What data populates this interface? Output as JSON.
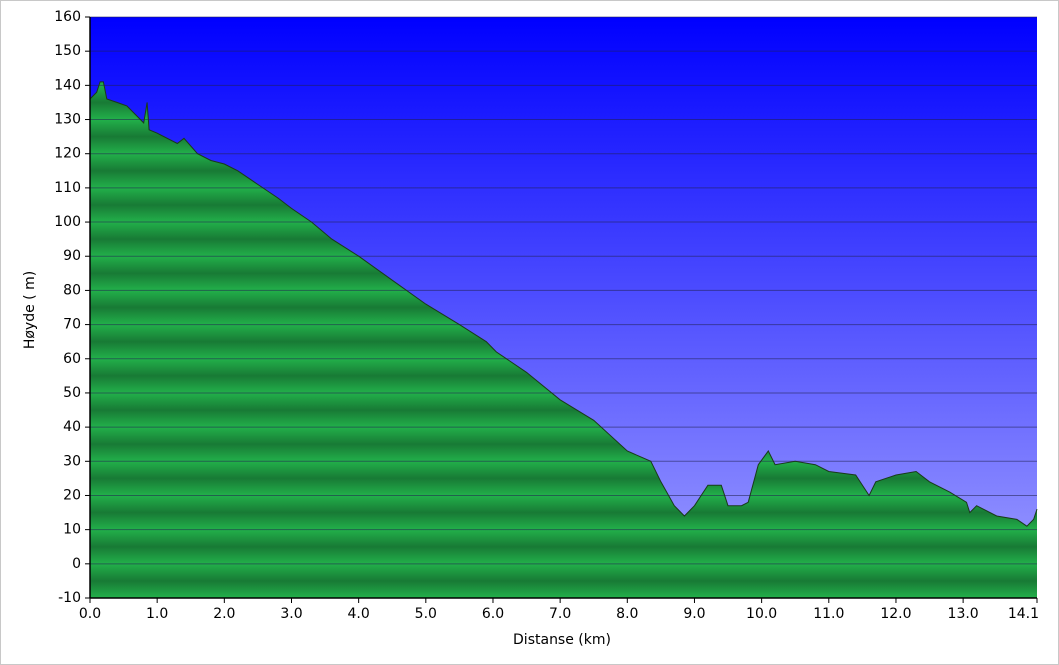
{
  "chart_data": {
    "type": "area",
    "x_label": "Distanse  (km)",
    "y_label": "Høyde ( m)",
    "x": [
      0,
      0.1,
      0.15,
      0.2,
      0.25,
      0.4,
      0.55,
      0.7,
      0.8,
      0.85,
      0.88,
      1.0,
      1.3,
      1.4,
      1.6,
      1.8,
      2.0,
      2.2,
      2.5,
      2.8,
      3.0,
      3.3,
      3.6,
      4.0,
      4.5,
      5.0,
      5.5,
      5.9,
      6.05,
      6.5,
      7.0,
      7.5,
      8.0,
      8.35,
      8.5,
      8.7,
      8.85,
      9.0,
      9.2,
      9.4,
      9.5,
      9.7,
      9.8,
      9.95,
      10.1,
      10.2,
      10.5,
      10.8,
      11.0,
      11.4,
      11.6,
      11.7,
      12.0,
      12.3,
      12.5,
      12.8,
      13.05,
      13.1,
      13.2,
      13.5,
      13.8,
      13.95,
      14.05,
      14.1
    ],
    "values": [
      136,
      138,
      141,
      141,
      136,
      135,
      134,
      131,
      129,
      135,
      127,
      126,
      123,
      124.5,
      120,
      118,
      117,
      115,
      111,
      107,
      104,
      100,
      95,
      90,
      83,
      76,
      70,
      65,
      62,
      56,
      48,
      42,
      33,
      30,
      24,
      17,
      14,
      17,
      23,
      23,
      17,
      17,
      18,
      29,
      33,
      29,
      30,
      29,
      27,
      26,
      20,
      24,
      26,
      27,
      24,
      21,
      18,
      15,
      17,
      14,
      13,
      11,
      13,
      16
    ],
    "color": "#22b04a",
    "line_color": "#1a3a1a",
    "background_top": "#0000ff",
    "background_bottom": "#a0a0ff",
    "xlim": [
      0,
      14.1
    ],
    "ylim": [
      -10,
      160
    ],
    "xticks": [
      {
        "value": 0,
        "label": "0.0"
      },
      {
        "value": 1,
        "label": "1.0"
      },
      {
        "value": 2,
        "label": "2.0"
      },
      {
        "value": 3,
        "label": "3.0"
      },
      {
        "value": 4,
        "label": "4.0"
      },
      {
        "value": 5,
        "label": "5.0"
      },
      {
        "value": 6,
        "label": "6.0"
      },
      {
        "value": 7,
        "label": "7.0"
      },
      {
        "value": 8,
        "label": "8.0"
      },
      {
        "value": 9,
        "label": "9.0"
      },
      {
        "value": 10,
        "label": "10.0"
      },
      {
        "value": 11,
        "label": "11.0"
      },
      {
        "value": 12,
        "label": "12.0"
      },
      {
        "value": 13,
        "label": "13.0"
      },
      14.1
    ],
    "yticks": [
      -10,
      0,
      10,
      20,
      30,
      40,
      50,
      60,
      70,
      80,
      90,
      100,
      110,
      120,
      130,
      140,
      150,
      160
    ],
    "grid": true
  }
}
